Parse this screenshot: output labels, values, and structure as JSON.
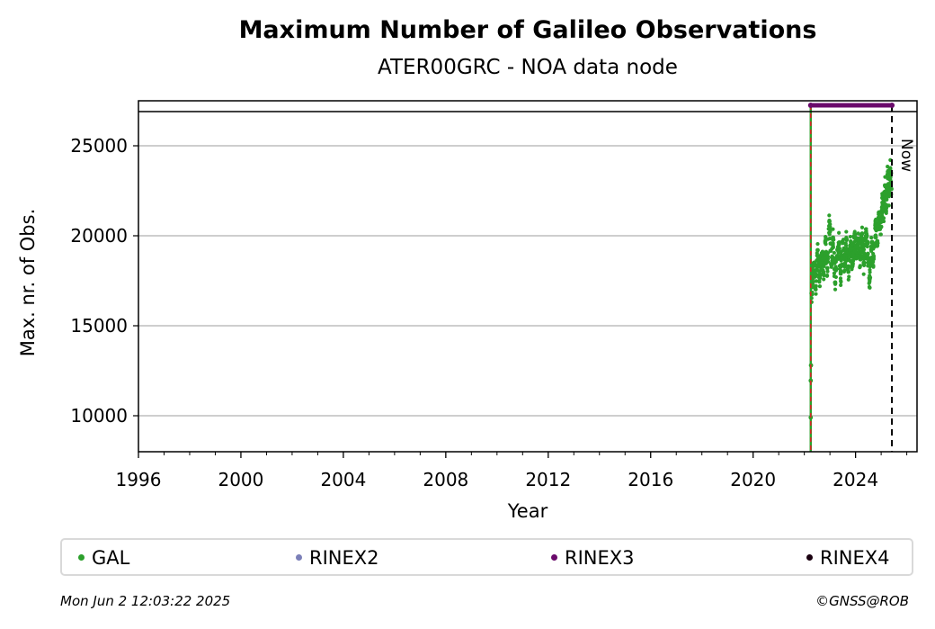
{
  "chart_data": {
    "type": "scatter",
    "title": "Maximum Number of Galileo Observations",
    "subtitle": "ATER00GRC - NOA data node",
    "xlabel": "Year",
    "ylabel": "Max. nr. of Obs.",
    "xlim": [
      1996,
      2026.4
    ],
    "ylim": [
      8000,
      27500
    ],
    "xticks": [
      1996,
      2000,
      2004,
      2008,
      2012,
      2016,
      2020,
      2024
    ],
    "yticks": [
      10000,
      15000,
      20000,
      25000
    ],
    "grid": "horizontal",
    "now_label": "Now",
    "now_year": 2025.42,
    "start_year": 2022.25,
    "format_bar": {
      "series": "RINEX3",
      "start": 2022.25,
      "end": 2025.42,
      "value": 27250
    },
    "series": [
      {
        "name": "GAL",
        "color": "#2ca02c",
        "points": [
          [
            2022.25,
            9900
          ],
          [
            2022.25,
            11950
          ],
          [
            2022.26,
            12800
          ],
          [
            2022.28,
            16800
          ],
          [
            2022.32,
            17600
          ],
          [
            2022.38,
            18500
          ],
          [
            2022.45,
            17200
          ],
          [
            2022.52,
            19200
          ],
          [
            2022.6,
            17700
          ],
          [
            2022.68,
            18900
          ],
          [
            2022.75,
            17900
          ],
          [
            2022.82,
            19700
          ],
          [
            2022.9,
            18200
          ],
          [
            2022.98,
            20800
          ],
          [
            2023.05,
            18400
          ],
          [
            2023.12,
            19900
          ],
          [
            2023.2,
            17400
          ],
          [
            2023.28,
            18800
          ],
          [
            2023.35,
            19500
          ],
          [
            2023.42,
            17900
          ],
          [
            2023.5,
            19600
          ],
          [
            2023.58,
            18300
          ],
          [
            2023.65,
            19800
          ],
          [
            2023.72,
            18000
          ],
          [
            2023.8,
            19300
          ],
          [
            2023.88,
            18600
          ],
          [
            2023.95,
            19900
          ],
          [
            2024.02,
            18900
          ],
          [
            2024.1,
            19700
          ],
          [
            2024.18,
            18700
          ],
          [
            2024.25,
            20100
          ],
          [
            2024.32,
            18500
          ],
          [
            2024.4,
            19900
          ],
          [
            2024.48,
            19000
          ],
          [
            2024.55,
            17600
          ],
          [
            2024.62,
            19400
          ],
          [
            2024.7,
            18800
          ],
          [
            2024.78,
            20600
          ],
          [
            2024.85,
            19700
          ],
          [
            2024.92,
            21300
          ],
          [
            2025.0,
            20500
          ],
          [
            2025.05,
            22100
          ],
          [
            2025.1,
            21400
          ],
          [
            2025.15,
            22800
          ],
          [
            2025.2,
            21700
          ],
          [
            2025.25,
            23400
          ],
          [
            2025.3,
            22200
          ],
          [
            2025.35,
            23700
          ],
          [
            2025.4,
            22600
          ]
        ]
      },
      {
        "name": "RINEX2",
        "color": "#7b7fb8",
        "points": []
      },
      {
        "name": "RINEX3",
        "color": "#6a0a6b",
        "points": []
      },
      {
        "name": "RINEX4",
        "color": "#1a0010",
        "points": []
      }
    ]
  },
  "legend": [
    {
      "label": "GAL",
      "color": "#2ca02c"
    },
    {
      "label": "RINEX2",
      "color": "#7b7fb8"
    },
    {
      "label": "RINEX3",
      "color": "#6a0a6b"
    },
    {
      "label": "RINEX4",
      "color": "#1a0010"
    }
  ],
  "footer": {
    "timestamp": "Mon Jun  2 12:03:22 2025",
    "credit": "©GNSS@ROB"
  }
}
